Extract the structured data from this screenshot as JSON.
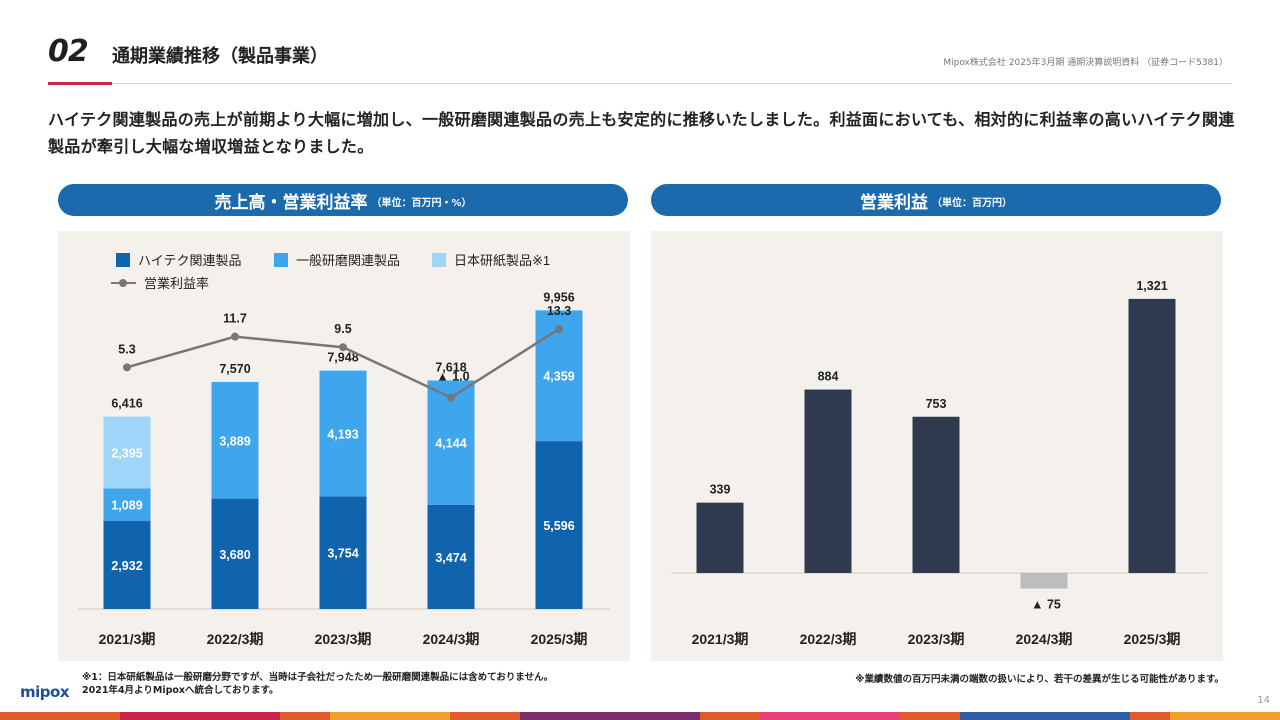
{
  "header": {
    "section_number": "02",
    "title": "通期業績推移（製品事業）",
    "subtitle": "Mipox株式会社 2025年3月期 通期決算説明資料 （証券コード5381）"
  },
  "lead_text": "ハイテク関連製品の売上が前期より大幅に増加し、一般研磨関連製品の売上も安定的に推移いたしました。利益面においても、相対的に利益率の高いハイテク関連製品が牽引し大幅な増収増益となりました。",
  "left_panel": {
    "title": "売上高・営業利益率",
    "unit": "（単位：百万円・%）"
  },
  "right_panel": {
    "title": "営業利益",
    "unit": "（単位：百万円）"
  },
  "colors": {
    "hitech": "#1063ad",
    "general": "#3fa6ee",
    "paper": "#9ed5f8",
    "margin_line": "#777777",
    "profit_bar": "#2f3a4e",
    "loss_bar": "#bdbdbd",
    "pill": "#1a6aad",
    "accent": "#c8234b"
  },
  "chart_data": [
    {
      "type": "bar",
      "stacked": true,
      "categories": [
        "2021/3期",
        "2022/3期",
        "2023/3期",
        "2024/3期",
        "2025/3期"
      ],
      "series": [
        {
          "name": "ハイテク関連製品",
          "values": [
            2932,
            3680,
            3754,
            3474,
            5596
          ]
        },
        {
          "name": "一般研磨関連製品",
          "values": [
            1089,
            3889,
            4193,
            4144,
            4359
          ]
        },
        {
          "name": "日本研紙製品※1",
          "values": [
            2395,
            null,
            null,
            null,
            null
          ]
        }
      ],
      "totals": [
        6416,
        7570,
        7948,
        7618,
        9956
      ],
      "line_series": {
        "name": "営業利益率",
        "values": [
          5.3,
          11.7,
          9.5,
          -1.0,
          13.3
        ],
        "labels": [
          "5.3",
          "11.7",
          "9.5",
          "▲ 1.0",
          "13.3"
        ]
      },
      "legend": "top-left"
    },
    {
      "type": "bar",
      "categories": [
        "2021/3期",
        "2022/3期",
        "2023/3期",
        "2024/3期",
        "2025/3期"
      ],
      "values": [
        339,
        884,
        753,
        -75,
        1321
      ],
      "labels": [
        "339",
        "884",
        "753",
        "▲ 75",
        "1,321"
      ]
    }
  ],
  "footnotes": {
    "left_line1": "※1：日本研紙製品は一般研磨分野ですが、当時は子会社だったため一般研磨関連製品には含めておりません。",
    "left_line2": "2021年4月よりMipoxへ統合しております。",
    "right": "※業績数値の百万円未満の端数の扱いにより、若干の差異が生じる可能性があります。"
  },
  "logo_text": "mipox",
  "page_number": "14"
}
